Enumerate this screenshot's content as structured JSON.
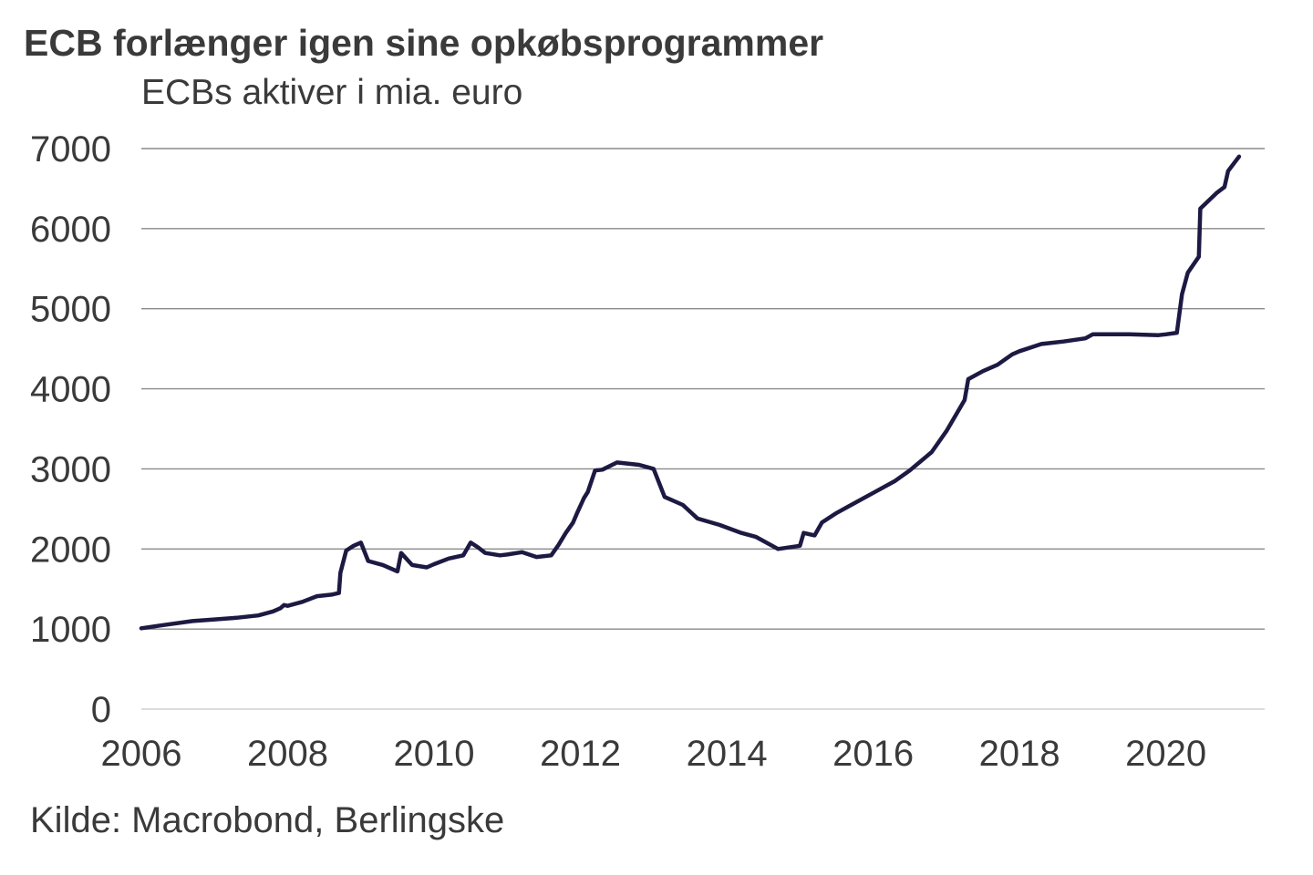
{
  "chart_data": {
    "type": "line",
    "title": "ECB forlænger igen sine opkøbsprogrammer",
    "subtitle": "ECBs aktiver i mia. euro",
    "source": "Kilde: Macrobond, Berlingske",
    "xlabel": "",
    "ylabel": "",
    "xlim": [
      2006.0,
      2021.35
    ],
    "ylim": [
      0,
      7000
    ],
    "x_ticks": [
      "2006",
      "2008",
      "2010",
      "2012",
      "2014",
      "2016",
      "2018",
      "2020"
    ],
    "y_ticks": [
      "0",
      "1000",
      "2000",
      "3000",
      "4000",
      "5000",
      "6000",
      "7000"
    ],
    "grid": "horizontal",
    "legend": "none",
    "line_color": "#1c1a42",
    "series": [
      {
        "x": [
          2006.0,
          2006.3,
          2006.7,
          2007.0,
          2007.3,
          2007.6,
          2007.8,
          2007.9,
          2007.95,
          2008.0,
          2008.2,
          2008.4,
          2008.6,
          2008.7,
          2008.72,
          2008.8,
          2008.9,
          2009.0,
          2009.1,
          2009.3,
          2009.5,
          2009.55,
          2009.7,
          2009.9,
          2010.0,
          2010.2,
          2010.4,
          2010.5,
          2010.6,
          2010.7,
          2010.9,
          2011.0,
          2011.2,
          2011.4,
          2011.6,
          2011.7,
          2011.8,
          2011.9,
          2011.95,
          2012.05,
          2012.1,
          2012.2,
          2012.3,
          2012.5,
          2012.8,
          2013.0,
          2013.15,
          2013.4,
          2013.6,
          2013.9,
          2014.2,
          2014.4,
          2014.7,
          2015.0,
          2015.05,
          2015.2,
          2015.3,
          2015.5,
          2015.7,
          2016.0,
          2016.3,
          2016.5,
          2016.8,
          2017.0,
          2017.25,
          2017.3,
          2017.5,
          2017.7,
          2017.9,
          2018.0,
          2018.3,
          2018.6,
          2018.9,
          2019.0,
          2019.5,
          2019.9,
          2020.0,
          2020.15,
          2020.22,
          2020.3,
          2020.45,
          2020.47,
          2020.7,
          2020.8,
          2020.85,
          2021.0
        ],
        "y": [
          1010,
          1050,
          1100,
          1120,
          1140,
          1170,
          1220,
          1260,
          1300,
          1290,
          1340,
          1410,
          1430,
          1450,
          1700,
          1980,
          2040,
          2080,
          1850,
          1800,
          1720,
          1950,
          1800,
          1770,
          1810,
          1880,
          1920,
          2080,
          2020,
          1950,
          1920,
          1930,
          1960,
          1900,
          1920,
          2050,
          2200,
          2330,
          2440,
          2640,
          2710,
          2980,
          2990,
          3080,
          3050,
          3000,
          2650,
          2550,
          2380,
          2300,
          2200,
          2150,
          2000,
          2040,
          2200,
          2170,
          2330,
          2450,
          2550,
          2700,
          2850,
          2980,
          3210,
          3470,
          3860,
          4120,
          4220,
          4300,
          4430,
          4470,
          4560,
          4590,
          4630,
          4680,
          4680,
          4670,
          4680,
          4700,
          5180,
          5450,
          5650,
          6250,
          6450,
          6520,
          6720,
          6900
        ]
      }
    ]
  }
}
